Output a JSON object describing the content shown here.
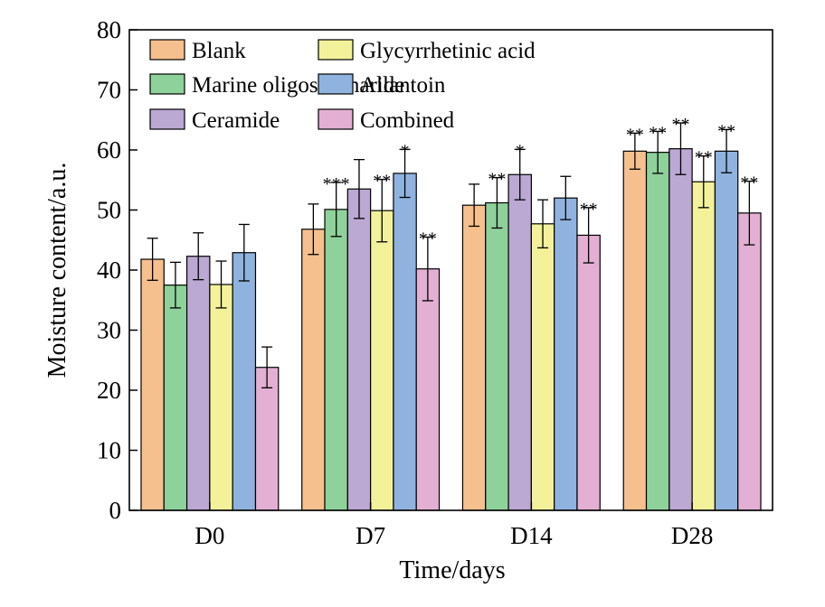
{
  "chart_data": {
    "type": "bar",
    "xlabel": "Time/days",
    "ylabel": "Moisture content/a.u.",
    "ylim": [
      0,
      80
    ],
    "yticks": [
      0,
      10,
      20,
      30,
      40,
      50,
      60,
      70,
      80
    ],
    "categories": [
      "D0",
      "D7",
      "D14",
      "D28"
    ],
    "legend_position": "top-left",
    "series": [
      {
        "name": "Blank",
        "color": "#F6C08E",
        "values": [
          41.8,
          46.8,
          50.8,
          59.8
        ],
        "errors": [
          3.5,
          4.2,
          3.5,
          3.0
        ],
        "sig": [
          "",
          "",
          "",
          "**"
        ]
      },
      {
        "name": "Marine oligosaccharide",
        "color": "#8FD19A",
        "values": [
          37.5,
          50.1,
          51.2,
          59.6
        ],
        "errors": [
          3.8,
          4.5,
          4.2,
          3.5
        ],
        "sig": [
          "",
          "***",
          "**",
          "**"
        ]
      },
      {
        "name": "Ceramide",
        "color": "#BBA8D3",
        "values": [
          42.3,
          53.5,
          55.9,
          60.2
        ],
        "errors": [
          3.9,
          4.9,
          4.2,
          4.3
        ],
        "sig": [
          "",
          "",
          "*",
          "**"
        ]
      },
      {
        "name": "Glycyrrhetinic acid",
        "color": "#F3F29B",
        "values": [
          37.6,
          49.9,
          47.7,
          54.7
        ],
        "errors": [
          3.9,
          5.2,
          4.0,
          4.3
        ],
        "sig": [
          "",
          "**",
          "",
          "**"
        ]
      },
      {
        "name": "Allantoin",
        "color": "#8FB3DE",
        "values": [
          42.9,
          56.1,
          52.0,
          59.8
        ],
        "errors": [
          4.7,
          4.0,
          3.6,
          3.6
        ],
        "sig": [
          "",
          "*",
          "",
          "**"
        ]
      },
      {
        "name": "Combined",
        "color": "#E3B0D3",
        "values": [
          23.8,
          40.2,
          45.8,
          49.5
        ],
        "errors": [
          3.4,
          5.3,
          4.6,
          5.3
        ],
        "sig": [
          "",
          "**",
          "**",
          "**"
        ]
      }
    ]
  }
}
